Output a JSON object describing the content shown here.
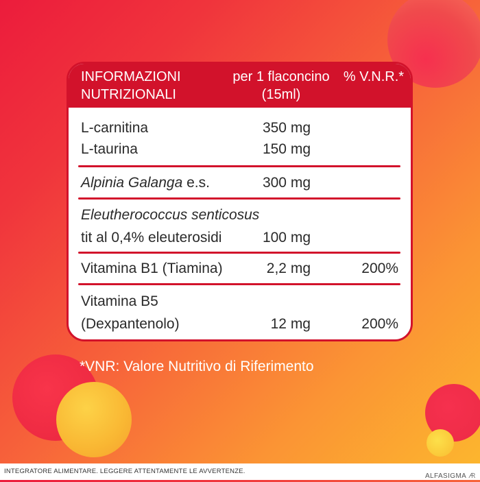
{
  "colors": {
    "brand_red": "#d2122b",
    "background_start": "#ec1c3c",
    "background_end": "#fcb82e",
    "text_dark": "#2a2a2a",
    "white": "#ffffff"
  },
  "table": {
    "header": {
      "col1_line1": "INFORMAZIONI",
      "col1_line2": "NUTRIZIONALI",
      "col2_line1": "per 1 flaconcino",
      "col2_line2": "(15ml)",
      "col3": "% V.N.R.*"
    },
    "rows": [
      {
        "name": "L-carnitina",
        "qty": "350 mg",
        "pct": ""
      },
      {
        "name": "L-taurina",
        "qty": "150 mg",
        "pct": ""
      },
      {
        "name": "Alpinia Galanga",
        "name_suffix": " e.s.",
        "qty": "300 mg",
        "pct": ""
      },
      {
        "name": "Eleutherococcus senticosus",
        "name_line2": "tit al 0,4% eleuterosidi",
        "qty": "100 mg",
        "pct": ""
      },
      {
        "name": "Vitamina B1 (Tiamina)",
        "qty": "2,2 mg",
        "pct": "200%"
      },
      {
        "name": "Vitamina B5",
        "name_line2": "(Dexpantenolo)",
        "qty": "12 mg",
        "pct": "200%"
      }
    ]
  },
  "footnote": "*VNR: Valore Nutritivo di Riferimento",
  "disclaimer": "INTEGRATORE ALIMENTARE. LEGGERE ATTENTAMENTE LE AVVERTENZE.",
  "brand": "ALFASIGMA",
  "brand_icon": "alfasigma-logo-icon"
}
